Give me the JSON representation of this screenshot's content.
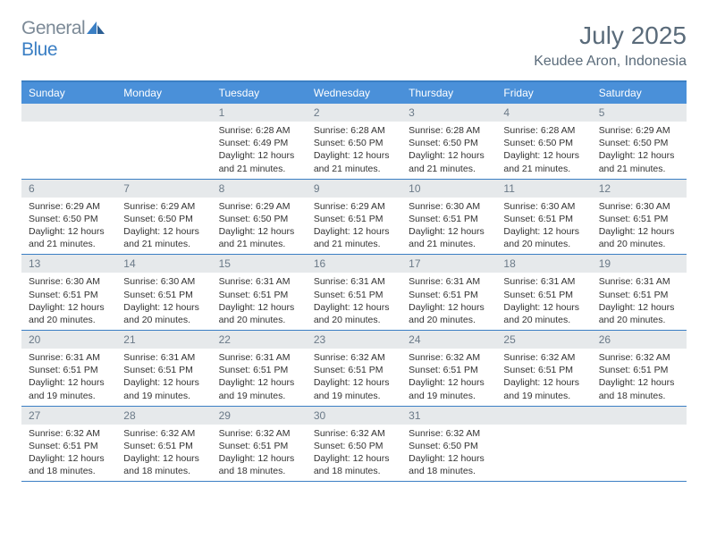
{
  "logo": {
    "text_gray": "General",
    "text_blue": "Blue"
  },
  "month_title": "July 2025",
  "location": "Keudee Aron, Indonesia",
  "colors": {
    "header_blue": "#4a90d9",
    "border_blue": "#3b7fc4",
    "daynum_bg": "#e6e9eb",
    "text_gray": "#5a6b7a",
    "body_text": "#333333",
    "background": "#ffffff"
  },
  "fonts": {
    "month_title_size": 28,
    "location_size": 16,
    "weekday_size": 12,
    "daynum_size": 12,
    "body_size": 10.5
  },
  "weekdays": [
    "Sunday",
    "Monday",
    "Tuesday",
    "Wednesday",
    "Thursday",
    "Friday",
    "Saturday"
  ],
  "weeks": [
    [
      null,
      null,
      {
        "n": "1",
        "sr": "Sunrise: 6:28 AM",
        "ss": "Sunset: 6:49 PM",
        "dl": "Daylight: 12 hours and 21 minutes."
      },
      {
        "n": "2",
        "sr": "Sunrise: 6:28 AM",
        "ss": "Sunset: 6:50 PM",
        "dl": "Daylight: 12 hours and 21 minutes."
      },
      {
        "n": "3",
        "sr": "Sunrise: 6:28 AM",
        "ss": "Sunset: 6:50 PM",
        "dl": "Daylight: 12 hours and 21 minutes."
      },
      {
        "n": "4",
        "sr": "Sunrise: 6:28 AM",
        "ss": "Sunset: 6:50 PM",
        "dl": "Daylight: 12 hours and 21 minutes."
      },
      {
        "n": "5",
        "sr": "Sunrise: 6:29 AM",
        "ss": "Sunset: 6:50 PM",
        "dl": "Daylight: 12 hours and 21 minutes."
      }
    ],
    [
      {
        "n": "6",
        "sr": "Sunrise: 6:29 AM",
        "ss": "Sunset: 6:50 PM",
        "dl": "Daylight: 12 hours and 21 minutes."
      },
      {
        "n": "7",
        "sr": "Sunrise: 6:29 AM",
        "ss": "Sunset: 6:50 PM",
        "dl": "Daylight: 12 hours and 21 minutes."
      },
      {
        "n": "8",
        "sr": "Sunrise: 6:29 AM",
        "ss": "Sunset: 6:50 PM",
        "dl": "Daylight: 12 hours and 21 minutes."
      },
      {
        "n": "9",
        "sr": "Sunrise: 6:29 AM",
        "ss": "Sunset: 6:51 PM",
        "dl": "Daylight: 12 hours and 21 minutes."
      },
      {
        "n": "10",
        "sr": "Sunrise: 6:30 AM",
        "ss": "Sunset: 6:51 PM",
        "dl": "Daylight: 12 hours and 21 minutes."
      },
      {
        "n": "11",
        "sr": "Sunrise: 6:30 AM",
        "ss": "Sunset: 6:51 PM",
        "dl": "Daylight: 12 hours and 20 minutes."
      },
      {
        "n": "12",
        "sr": "Sunrise: 6:30 AM",
        "ss": "Sunset: 6:51 PM",
        "dl": "Daylight: 12 hours and 20 minutes."
      }
    ],
    [
      {
        "n": "13",
        "sr": "Sunrise: 6:30 AM",
        "ss": "Sunset: 6:51 PM",
        "dl": "Daylight: 12 hours and 20 minutes."
      },
      {
        "n": "14",
        "sr": "Sunrise: 6:30 AM",
        "ss": "Sunset: 6:51 PM",
        "dl": "Daylight: 12 hours and 20 minutes."
      },
      {
        "n": "15",
        "sr": "Sunrise: 6:31 AM",
        "ss": "Sunset: 6:51 PM",
        "dl": "Daylight: 12 hours and 20 minutes."
      },
      {
        "n": "16",
        "sr": "Sunrise: 6:31 AM",
        "ss": "Sunset: 6:51 PM",
        "dl": "Daylight: 12 hours and 20 minutes."
      },
      {
        "n": "17",
        "sr": "Sunrise: 6:31 AM",
        "ss": "Sunset: 6:51 PM",
        "dl": "Daylight: 12 hours and 20 minutes."
      },
      {
        "n": "18",
        "sr": "Sunrise: 6:31 AM",
        "ss": "Sunset: 6:51 PM",
        "dl": "Daylight: 12 hours and 20 minutes."
      },
      {
        "n": "19",
        "sr": "Sunrise: 6:31 AM",
        "ss": "Sunset: 6:51 PM",
        "dl": "Daylight: 12 hours and 20 minutes."
      }
    ],
    [
      {
        "n": "20",
        "sr": "Sunrise: 6:31 AM",
        "ss": "Sunset: 6:51 PM",
        "dl": "Daylight: 12 hours and 19 minutes."
      },
      {
        "n": "21",
        "sr": "Sunrise: 6:31 AM",
        "ss": "Sunset: 6:51 PM",
        "dl": "Daylight: 12 hours and 19 minutes."
      },
      {
        "n": "22",
        "sr": "Sunrise: 6:31 AM",
        "ss": "Sunset: 6:51 PM",
        "dl": "Daylight: 12 hours and 19 minutes."
      },
      {
        "n": "23",
        "sr": "Sunrise: 6:32 AM",
        "ss": "Sunset: 6:51 PM",
        "dl": "Daylight: 12 hours and 19 minutes."
      },
      {
        "n": "24",
        "sr": "Sunrise: 6:32 AM",
        "ss": "Sunset: 6:51 PM",
        "dl": "Daylight: 12 hours and 19 minutes."
      },
      {
        "n": "25",
        "sr": "Sunrise: 6:32 AM",
        "ss": "Sunset: 6:51 PM",
        "dl": "Daylight: 12 hours and 19 minutes."
      },
      {
        "n": "26",
        "sr": "Sunrise: 6:32 AM",
        "ss": "Sunset: 6:51 PM",
        "dl": "Daylight: 12 hours and 18 minutes."
      }
    ],
    [
      {
        "n": "27",
        "sr": "Sunrise: 6:32 AM",
        "ss": "Sunset: 6:51 PM",
        "dl": "Daylight: 12 hours and 18 minutes."
      },
      {
        "n": "28",
        "sr": "Sunrise: 6:32 AM",
        "ss": "Sunset: 6:51 PM",
        "dl": "Daylight: 12 hours and 18 minutes."
      },
      {
        "n": "29",
        "sr": "Sunrise: 6:32 AM",
        "ss": "Sunset: 6:51 PM",
        "dl": "Daylight: 12 hours and 18 minutes."
      },
      {
        "n": "30",
        "sr": "Sunrise: 6:32 AM",
        "ss": "Sunset: 6:50 PM",
        "dl": "Daylight: 12 hours and 18 minutes."
      },
      {
        "n": "31",
        "sr": "Sunrise: 6:32 AM",
        "ss": "Sunset: 6:50 PM",
        "dl": "Daylight: 12 hours and 18 minutes."
      },
      null,
      null
    ]
  ]
}
